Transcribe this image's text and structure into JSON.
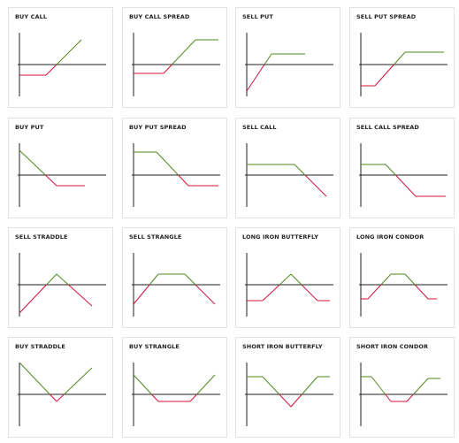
{
  "cards": [
    {
      "title": "BUY CALL"
    },
    {
      "title": "BUY CALL SPREAD"
    },
    {
      "title": "SELL PUT"
    },
    {
      "title": "SELL PUT SPREAD"
    },
    {
      "title": "BUY PUT"
    },
    {
      "title": "BUY PUT SPREAD"
    },
    {
      "title": "SELL CALL"
    },
    {
      "title": "SELL CALL SPREAD"
    },
    {
      "title": "SELL STRADDLE"
    },
    {
      "title": "SELL STRANGLE"
    },
    {
      "title": "LONG IRON BUTTERFLY"
    },
    {
      "title": "LONG IRON CONDOR"
    },
    {
      "title": "BUY STRADDLE"
    },
    {
      "title": "BUY STRANGLE"
    },
    {
      "title": "SHORT IRON BUTTERFLY"
    },
    {
      "title": "SHORT IRON CONDOR"
    }
  ]
}
